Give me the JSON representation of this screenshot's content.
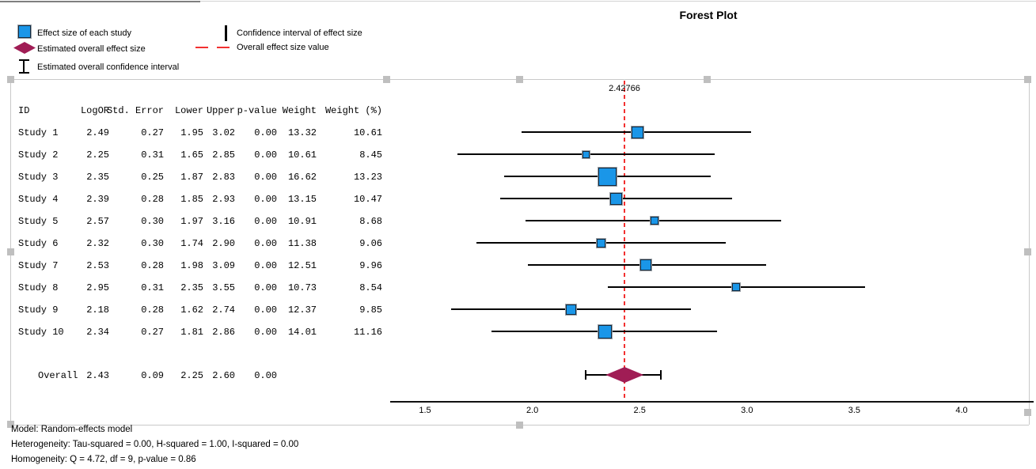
{
  "title": "Forest Plot",
  "legend": {
    "left": [
      {
        "icon": "study-effect-square",
        "label": "Effect size of each study"
      },
      {
        "icon": "overall-effect-diamond",
        "label": "Estimated overall effect size"
      },
      {
        "icon": "overall-ci-ibeam",
        "label": "Estimated overall confidence interval"
      }
    ],
    "right": [
      {
        "icon": "ci-vertical-line",
        "label": "Confidence interval of effect size"
      },
      {
        "icon": "overall-dashed-line",
        "label": "Overall effect size value"
      }
    ]
  },
  "table": {
    "columns": [
      "ID",
      "LogOR",
      "Std. Error",
      "Lower",
      "Upper",
      "p-value",
      "Weight",
      "Weight (%)"
    ]
  },
  "chart_data": {
    "type": "forest",
    "x_ticks": [
      "1.5",
      "2.0",
      "2.5",
      "3.0",
      "3.5",
      "4.0"
    ],
    "xlim": [
      1.34,
      4.35
    ],
    "grid": false,
    "overall_effect_line": {
      "value": 2.42766,
      "label": "2.42766"
    },
    "studies": [
      {
        "id": "Study 1",
        "logor": "2.49",
        "std_error": "0.27",
        "lower": "1.95",
        "upper": "3.02",
        "p_value": "0.00",
        "weight": "13.32",
        "weight_pct": "10.61"
      },
      {
        "id": "Study 2",
        "logor": "2.25",
        "std_error": "0.31",
        "lower": "1.65",
        "upper": "2.85",
        "p_value": "0.00",
        "weight": "10.61",
        "weight_pct": "8.45"
      },
      {
        "id": "Study 3",
        "logor": "2.35",
        "std_error": "0.25",
        "lower": "1.87",
        "upper": "2.83",
        "p_value": "0.00",
        "weight": "16.62",
        "weight_pct": "13.23"
      },
      {
        "id": "Study 4",
        "logor": "2.39",
        "std_error": "0.28",
        "lower": "1.85",
        "upper": "2.93",
        "p_value": "0.00",
        "weight": "13.15",
        "weight_pct": "10.47"
      },
      {
        "id": "Study 5",
        "logor": "2.57",
        "std_error": "0.30",
        "lower": "1.97",
        "upper": "3.16",
        "p_value": "0.00",
        "weight": "10.91",
        "weight_pct": "8.68"
      },
      {
        "id": "Study 6",
        "logor": "2.32",
        "std_error": "0.30",
        "lower": "1.74",
        "upper": "2.90",
        "p_value": "0.00",
        "weight": "11.38",
        "weight_pct": "9.06"
      },
      {
        "id": "Study 7",
        "logor": "2.53",
        "std_error": "0.28",
        "lower": "1.98",
        "upper": "3.09",
        "p_value": "0.00",
        "weight": "12.51",
        "weight_pct": "9.96"
      },
      {
        "id": "Study 8",
        "logor": "2.95",
        "std_error": "0.31",
        "lower": "2.35",
        "upper": "3.55",
        "p_value": "0.00",
        "weight": "10.73",
        "weight_pct": "8.54"
      },
      {
        "id": "Study 9",
        "logor": "2.18",
        "std_error": "0.28",
        "lower": "1.62",
        "upper": "2.74",
        "p_value": "0.00",
        "weight": "12.37",
        "weight_pct": "9.85"
      },
      {
        "id": "Study 10",
        "logor": "2.34",
        "std_error": "0.27",
        "lower": "1.81",
        "upper": "2.86",
        "p_value": "0.00",
        "weight": "14.01",
        "weight_pct": "11.16"
      }
    ],
    "overall": {
      "id": "Overall",
      "logor": "2.43",
      "std_error": "0.09",
      "lower": "2.25",
      "upper": "2.60",
      "p_value": "0.00"
    }
  },
  "footer": {
    "lines": [
      "Model: Random-effects model",
      "Heterogeneity: Tau-squared = 0.00, H-squared = 1.00, I-squared = 0.00",
      "Homogeneity: Q = 4.72, df = 9, p-value = 0.86"
    ]
  },
  "colors": {
    "study_marker": "#1A96E8",
    "marker_border": "#13293D",
    "marker_halo": "#9aa0a6",
    "overall_diamond": "#A01D55",
    "overall_line": "#F23030",
    "ci_line": "#000000",
    "axis_line": "#111111",
    "selection_handle": "#BFBFBF",
    "selection_edge": "#C9C9C9"
  }
}
